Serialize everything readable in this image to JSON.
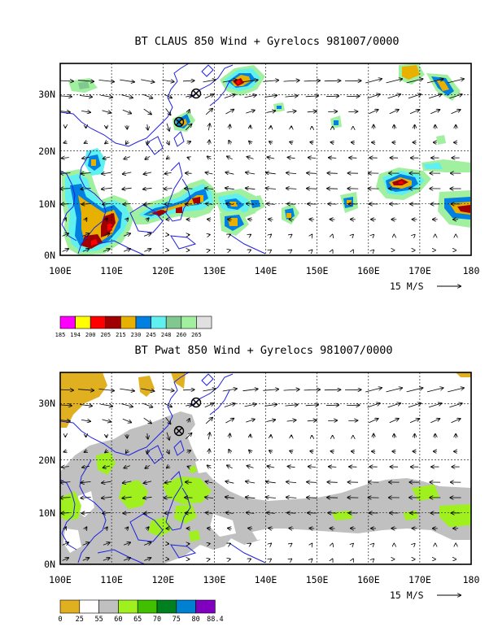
{
  "maps": [
    {
      "title": "BT CLAUS 850 Wind + Gyrelocs 981007/0000",
      "lon_labels": [
        "100E",
        "110E",
        "120E",
        "130E",
        "140E",
        "150E",
        "160E",
        "170E",
        "180"
      ],
      "lat_labels": [
        "0N",
        "10N",
        "20N",
        "30N"
      ],
      "vector_ref_label": "15 M/S",
      "colorbar": {
        "labels": [
          "185",
          "194",
          "200",
          "205",
          "215",
          "230",
          "245",
          "248",
          "260",
          "265"
        ],
        "colors": [
          "#ff00ff",
          "#ffff00",
          "#ff0000",
          "#a00000",
          "#e8b000",
          "#0080e0",
          "#60f0f0",
          "#80c890",
          "#a0f0a0",
          "#e0e0e0"
        ]
      },
      "gyre_locations": [
        {
          "lon": 126.3,
          "lat": 30.0
        },
        {
          "lon": 123.0,
          "lat": 25.0
        }
      ]
    },
    {
      "title": "BT Pwat 850 Wind + Gyrelocs 981007/0000",
      "lon_labels": [
        "100E",
        "110E",
        "120E",
        "130E",
        "140E",
        "150E",
        "160E",
        "170E",
        "180"
      ],
      "lat_labels": [
        "0N",
        "10N",
        "20N",
        "30N"
      ],
      "vector_ref_label": "15 M/S",
      "colorbar": {
        "labels": [
          "0",
          "25",
          "55",
          "60",
          "65",
          "70",
          "75",
          "80",
          "88.4"
        ],
        "colors": [
          "#e0b020",
          "#ffffff",
          "#c0c0c0",
          "#a0f020",
          "#40c000",
          "#008020",
          "#0080d0",
          "#8000c0"
        ]
      },
      "gyre_locations": [
        {
          "lon": 126.3,
          "lat": 30.0
        },
        {
          "lon": 123.0,
          "lat": 25.0
        }
      ]
    }
  ]
}
